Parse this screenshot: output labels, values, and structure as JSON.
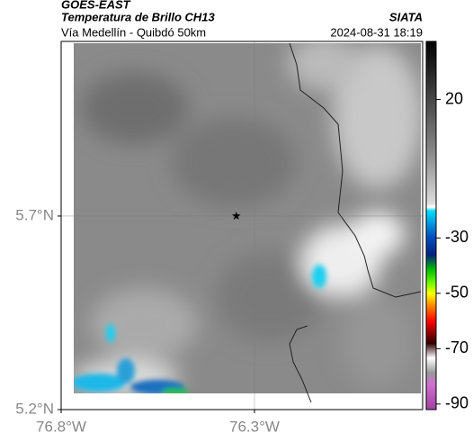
{
  "header": {
    "source": "GOES-EAST",
    "product": "Temperatura de Brillo CH13",
    "org": "SIATA",
    "route": "Vía Medellín - Quibdó 50km",
    "datetime": "2024-08-31 18:19"
  },
  "map": {
    "xlim": [
      -76.8,
      -75.865
    ],
    "ylim": [
      5.2,
      6.151
    ],
    "xticks": [
      {
        "value": -76.8,
        "label": "76.8°W"
      },
      {
        "value": -76.3,
        "label": "76.3°W"
      }
    ],
    "yticks": [
      {
        "value": 5.2,
        "label": "5.2°N"
      },
      {
        "value": 5.7,
        "label": "5.7°N"
      }
    ],
    "grid": true,
    "marker": {
      "lon": -76.347,
      "lat": 5.7
    }
  },
  "colorbar": {
    "clim": [
      -92,
      41
    ],
    "ticks": [
      20,
      -30,
      -50,
      -70,
      -90
    ]
  }
}
